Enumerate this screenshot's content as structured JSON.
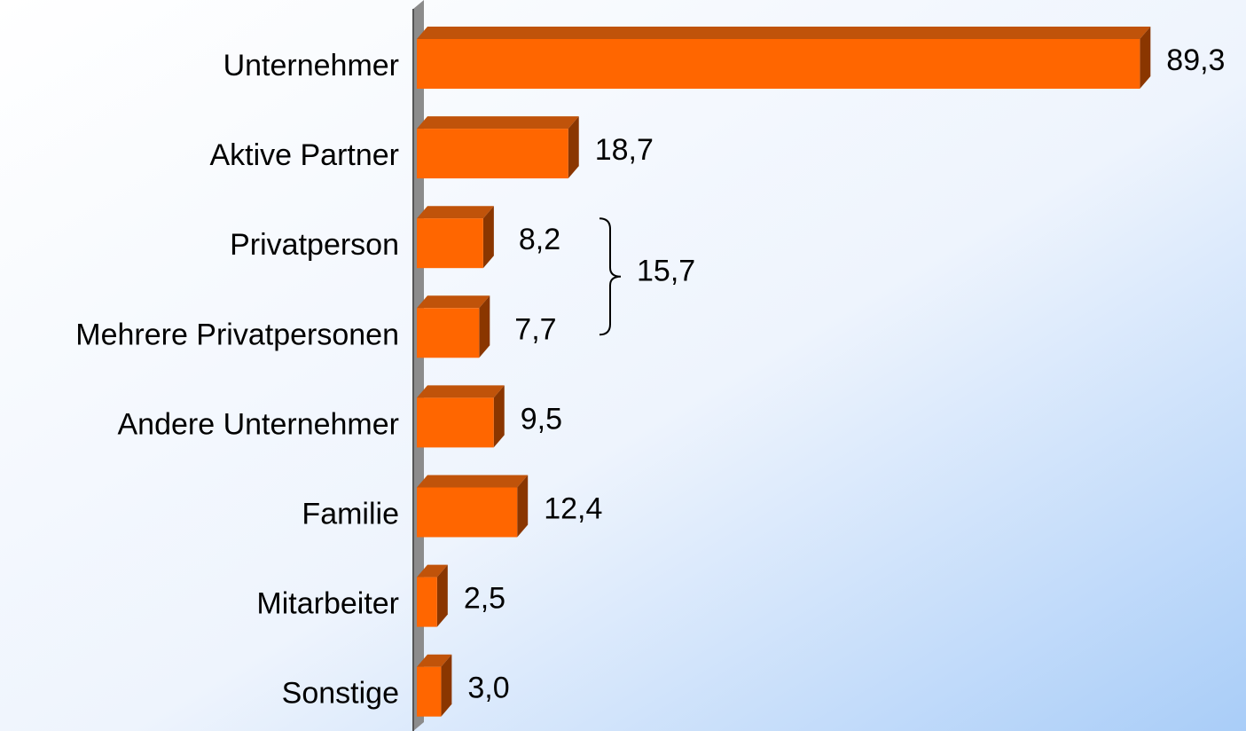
{
  "chart_data": {
    "type": "bar",
    "orientation": "horizontal",
    "categories": [
      "Unternehmer",
      "Aktive Partner",
      "Privatperson",
      "Mehrere Privatpersonen",
      "Andere Unternehmer",
      "Familie",
      "Mitarbeiter",
      "Sonstige"
    ],
    "values": [
      89.3,
      18.7,
      8.2,
      7.7,
      9.5,
      12.4,
      2.5,
      3.0
    ],
    "value_labels": [
      "89,3",
      "18,7",
      "8,2",
      "7,7",
      "9,5",
      "12,4",
      "2,5",
      "3,0"
    ],
    "color": "#ff6600",
    "annotations": [
      {
        "text": "15,7"
      }
    ]
  }
}
